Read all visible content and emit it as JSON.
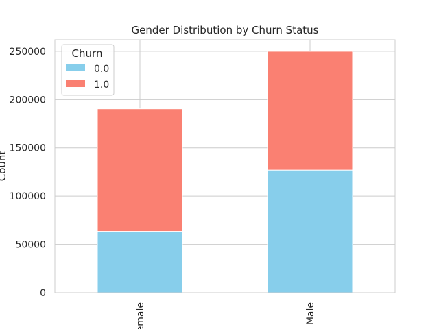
{
  "chart_data": {
    "type": "bar",
    "stacked": true,
    "title": "Gender Distribution by Churn Status",
    "xlabel": "",
    "ylabel": "Count",
    "categories": [
      "Female",
      "Male"
    ],
    "series": [
      {
        "name": "0.0",
        "values": [
          63500,
          127000
        ],
        "color": "#87ceeb"
      },
      {
        "name": "1.0",
        "values": [
          127000,
          123000
        ],
        "color": "#fa8072"
      }
    ],
    "ylim": [
      0,
      262000
    ],
    "yticks": [
      0,
      50000,
      100000,
      150000,
      200000,
      250000
    ],
    "ytick_labels": [
      "0",
      "50000",
      "100000",
      "150000",
      "200000",
      "250000"
    ],
    "grid": true,
    "legend": {
      "title": "Churn",
      "placement": "top-left"
    },
    "colors": {
      "grid": "#cccccc",
      "axes_edge": "#cccccc",
      "text": "#262626",
      "bar_edge": "#ffffff"
    }
  }
}
